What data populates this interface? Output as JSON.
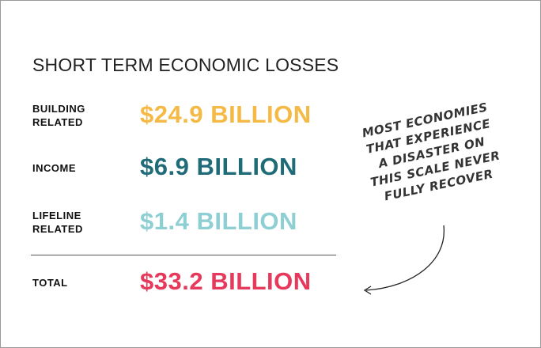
{
  "title": "SHORT TERM ECONOMIC LOSSES",
  "rows": [
    {
      "label": [
        "BUILDING",
        "RELATED"
      ],
      "amount": "$24.9 BILLION",
      "color": "#f5b945"
    },
    {
      "label": [
        "INCOME"
      ],
      "amount": "$6.9 BILLION",
      "color": "#1f6c78"
    },
    {
      "label": [
        "LIFELINE",
        "RELATED"
      ],
      "amount": "$1.4 BILLION",
      "color": "#8ecfd4"
    }
  ],
  "total": {
    "label": [
      "TOTAL"
    ],
    "amount": "$33.2 BILLION",
    "color": "#e6395b"
  },
  "annotation": [
    "MOST ECONOMIES",
    "THAT EXPERIENCE",
    "A DISASTER ON",
    "THIS SCALE NEVER",
    "FULLY RECOVER"
  ]
}
